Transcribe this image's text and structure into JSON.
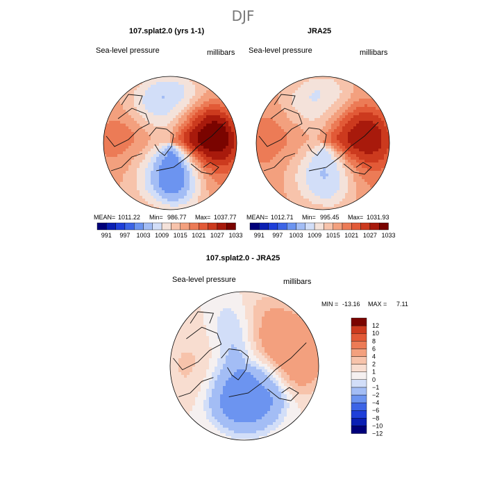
{
  "figure": {
    "season": "DJF"
  },
  "palette": {
    "absolute": [
      "#00007a",
      "#0a1fb3",
      "#1f3fd9",
      "#3c64e6",
      "#6c94f0",
      "#a3bdf5",
      "#d2def8",
      "#f4e2da",
      "#f7c3ab",
      "#f3a07e",
      "#ec7b56",
      "#e25a37",
      "#cc3a1e",
      "#a81a0c",
      "#7a0400"
    ],
    "difference": [
      "#00007a",
      "#0a1fb3",
      "#1f3fd9",
      "#3c64e6",
      "#6c94f0",
      "#a3bdf5",
      "#d2def8",
      "#f5f0f0",
      "#f8ddd0",
      "#f7c3ab",
      "#f3a07e",
      "#ec7b56",
      "#e25a37",
      "#cc3a1e",
      "#7a0400"
    ]
  },
  "chart_data": [
    {
      "type": "heatmap",
      "title": "107.splat2.0 (yrs 1-1)",
      "variable": "Sea-level pressure",
      "units": "millibars",
      "stats": {
        "mean_label": "MEAN=",
        "mean": "1011.22",
        "min_label": "Min=",
        "min": "986.77",
        "max_label": "Max=",
        "max": "1037.77"
      },
      "colorbar_ticks": [
        "991",
        "997",
        "1003",
        "1009",
        "1015",
        "1021",
        "1027",
        "1033"
      ],
      "field": [
        {
          "lon": 20,
          "lat": 55,
          "value": 989
        },
        {
          "lon": 0,
          "lat": 65,
          "value": 993
        },
        {
          "lon": 320,
          "lat": 62,
          "value": 999
        },
        {
          "lon": 180,
          "lat": 52,
          "value": 996
        },
        {
          "lon": 220,
          "lat": 60,
          "value": 1003
        },
        {
          "lon": 100,
          "lat": 55,
          "value": 1033
        },
        {
          "lon": 90,
          "lat": 48,
          "value": 1036
        },
        {
          "lon": 260,
          "lat": 60,
          "value": 1021
        },
        {
          "lon": 150,
          "lat": 65,
          "value": 1019
        },
        {
          "lon": 50,
          "lat": 45,
          "value": 1019
        },
        {
          "lon": 270,
          "lat": 40,
          "value": 1018
        },
        {
          "lon": 300,
          "lat": 50,
          "value": 1013
        }
      ]
    },
    {
      "type": "heatmap",
      "title": "JRA25",
      "variable": "Sea-level pressure",
      "units": "millibars",
      "stats": {
        "mean_label": "MEAN=",
        "mean": "1012.71",
        "min_label": "Min=",
        "min": "995.45",
        "max_label": "Max=",
        "max": "1031.93"
      },
      "colorbar_ticks": [
        "991",
        "997",
        "1003",
        "1009",
        "1015",
        "1021",
        "1027",
        "1033"
      ],
      "field": [
        {
          "lon": 20,
          "lat": 55,
          "value": 997
        },
        {
          "lon": 0,
          "lat": 65,
          "value": 1001
        },
        {
          "lon": 320,
          "lat": 62,
          "value": 1003
        },
        {
          "lon": 180,
          "lat": 52,
          "value": 1000
        },
        {
          "lon": 220,
          "lat": 60,
          "value": 1006
        },
        {
          "lon": 100,
          "lat": 55,
          "value": 1029
        },
        {
          "lon": 90,
          "lat": 48,
          "value": 1031
        },
        {
          "lon": 260,
          "lat": 60,
          "value": 1019
        },
        {
          "lon": 150,
          "lat": 65,
          "value": 1020
        },
        {
          "lon": 50,
          "lat": 45,
          "value": 1018
        },
        {
          "lon": 270,
          "lat": 40,
          "value": 1018
        },
        {
          "lon": 300,
          "lat": 50,
          "value": 1014
        }
      ]
    },
    {
      "type": "heatmap",
      "title": "107.splat2.0 - JRA25",
      "variable": "Sea-level pressure",
      "units": "millibars",
      "stats": {
        "min_label": "MIN =",
        "min": "-13.16",
        "max_label": "MAX =",
        "max": "7.11"
      },
      "colorbar_ticks": [
        "12",
        "10",
        "8",
        "6",
        "4",
        "2",
        "1",
        "0",
        "−1",
        "−2",
        "−4",
        "−6",
        "−8",
        "−10",
        "−12"
      ],
      "field": [
        {
          "lon": 0,
          "lat": 60,
          "value": -8
        },
        {
          "lon": 30,
          "lat": 70,
          "value": -6
        },
        {
          "lon": 300,
          "lat": 75,
          "value": -5
        },
        {
          "lon": 200,
          "lat": 60,
          "value": -4
        },
        {
          "lon": 90,
          "lat": 75,
          "value": -2
        },
        {
          "lon": 120,
          "lat": 55,
          "value": 6
        },
        {
          "lon": 100,
          "lat": 45,
          "value": 5
        },
        {
          "lon": 150,
          "lat": 50,
          "value": 3
        },
        {
          "lon": 240,
          "lat": 45,
          "value": 1
        },
        {
          "lon": 270,
          "lat": 50,
          "value": 2
        }
      ]
    }
  ]
}
